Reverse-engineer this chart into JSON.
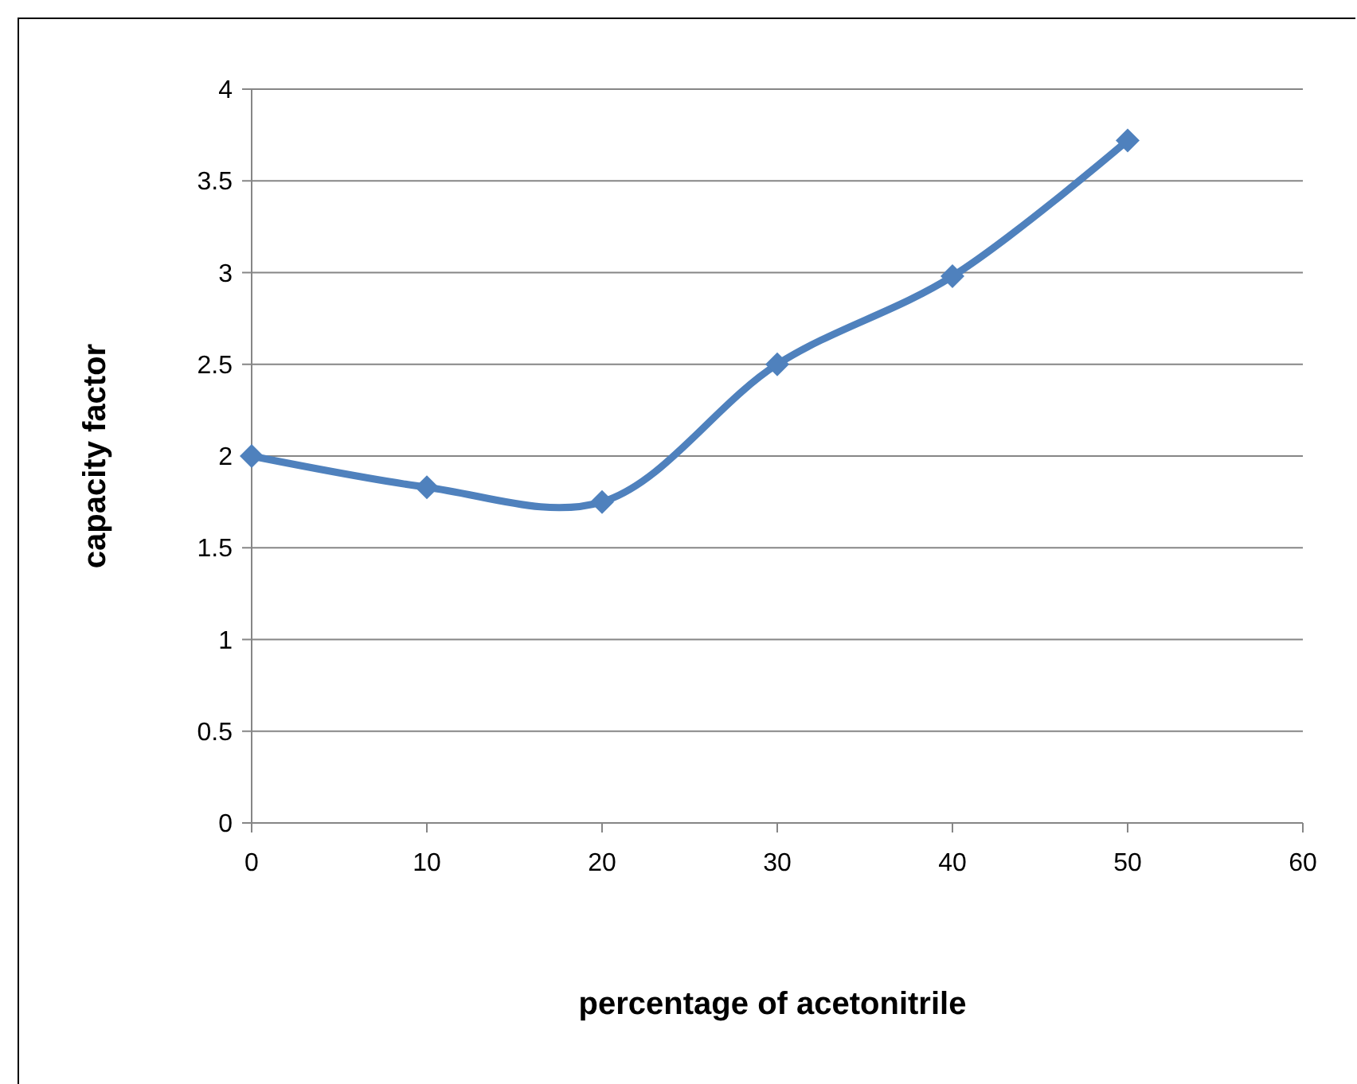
{
  "chart_data": {
    "type": "line",
    "xlabel": "percentage of acetonitrile",
    "ylabel": "capacity factor",
    "x": [
      0,
      10,
      20,
      30,
      40,
      50
    ],
    "series": [
      {
        "color": "#4f81bd",
        "values": [
          2.0,
          1.83,
          1.75,
          2.5,
          2.98,
          3.72
        ]
      }
    ],
    "xlim": [
      0,
      60
    ],
    "xticks": [
      0,
      10,
      20,
      30,
      40,
      50,
      60
    ],
    "ylim": [
      0,
      4
    ],
    "yticks": [
      0,
      0.5,
      1,
      1.5,
      2,
      2.5,
      3,
      3.5,
      4
    ],
    "grid": "y",
    "marker": "diamond",
    "line_style": "solid"
  }
}
